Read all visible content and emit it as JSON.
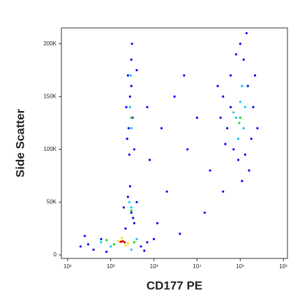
{
  "chart_data": {
    "type": "scatter",
    "x_label": "CD177 PE",
    "y_label": "Side Scatter",
    "xscale": "log",
    "xlim": [
      7.2,
      1240000
    ],
    "xticks": [
      {
        "value": 10,
        "label": "10¹"
      },
      {
        "value": 100,
        "label": "10²"
      },
      {
        "value": 1000,
        "label": "10³"
      },
      {
        "value": 10000,
        "label": "10⁴"
      },
      {
        "value": 100000,
        "label": "10⁵"
      },
      {
        "value": 1000000,
        "label": "10⁶"
      }
    ],
    "ylim": [
      -3300,
      215000
    ],
    "yticks": [
      0,
      {
        "value": 50000,
        "label": "50K"
      },
      {
        "value": 100000,
        "label": "100K"
      },
      {
        "value": 150000,
        "label": "150K"
      },
      {
        "value": 200000,
        "label": "200K"
      }
    ],
    "grid": false,
    "legend": false,
    "series": [
      {
        "color": "#0000ff",
        "x": [
          40000,
          60000,
          80000,
          120000,
          150000,
          200000,
          180000,
          70000,
          50000,
          90000,
          130000,
          250000,
          35000,
          100000,
          160000,
          110000,
          60000,
          220000,
          45000,
          140000,
          250,
          300,
          280,
          320,
          260,
          350,
          230,
          300,
          270,
          400,
          310,
          240,
          250,
          300,
          350,
          200,
          400,
          280,
          330,
          220,
          1500,
          3000,
          800,
          6000,
          10000,
          20000,
          2000,
          5000,
          15000,
          700,
          1200,
          30000,
          4000,
          40000,
          30,
          40,
          60,
          500,
          700,
          25,
          80,
          600,
          1000,
          20
        ],
        "y": [
          150000,
          170000,
          190000,
          185000,
          160000,
          140000,
          110000,
          100000,
          120000,
          90000,
          95000,
          120000,
          130000,
          200000,
          80000,
          70000,
          140000,
          170000,
          105000,
          210000,
          170000,
          185000,
          150000,
          130000,
          120000,
          100000,
          140000,
          160000,
          95000,
          175000,
          200000,
          110000,
          55000,
          40000,
          30000,
          45000,
          50000,
          65000,
          35000,
          25000,
          120000,
          150000,
          90000,
          100000,
          130000,
          80000,
          60000,
          170000,
          40000,
          140000,
          30000,
          160000,
          20000,
          60000,
          10000,
          5000,
          15000,
          8000,
          12000,
          18000,
          3000,
          4000,
          15000,
          8000
        ]
      },
      {
        "color": "#00c8ff",
        "x": [
          80000,
          100000,
          120000,
          90000,
          110000,
          70000,
          130000,
          280,
          300,
          290,
          300,
          270,
          100,
          400,
          60,
          300
        ],
        "y": [
          130000,
          145000,
          120000,
          110000,
          160000,
          135000,
          140000,
          140000,
          120000,
          170000,
          45000,
          50000,
          8000,
          15000,
          12000,
          5000
        ]
      },
      {
        "color": "#00e000",
        "x": [
          100000,
          95000,
          300,
          300,
          120,
          350,
          80
        ],
        "y": [
          130000,
          125000,
          130000,
          42000,
          10000,
          12000,
          14000
        ]
      },
      {
        "color": "#ffdd00",
        "x": [
          150,
          250,
          180,
          220
        ],
        "y": [
          13000,
          11000,
          16000,
          9000
        ]
      },
      {
        "color": "#e00000",
        "x": [
          190,
          210,
          170
        ],
        "y": [
          13000,
          12000,
          12500
        ]
      }
    ]
  }
}
